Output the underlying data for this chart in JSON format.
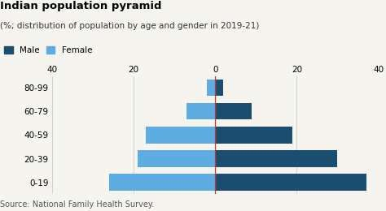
{
  "title": "Indian population pyramid",
  "subtitle": "(%; distribution of population by age and gender in 2019-21)",
  "source": "Source: National Family Health Survey.",
  "legend_male": "Male",
  "legend_female": "Female",
  "age_groups": [
    "0-19",
    "20-39",
    "40-59",
    "60-79",
    "80-99"
  ],
  "male_values": [
    37.0,
    30.0,
    19.0,
    9.0,
    2.0
  ],
  "female_values": [
    -26.0,
    -19.0,
    -17.0,
    -7.0,
    -2.0
  ],
  "male_color": "#1b4f72",
  "female_color": "#5dade2",
  "xlim": [
    -40,
    40
  ],
  "xticks": [
    -40,
    -20,
    0,
    20,
    40
  ],
  "xticklabels": [
    "40",
    "20",
    "0",
    "20",
    "40"
  ],
  "background_color": "#f5f4ef",
  "title_fontsize": 9.5,
  "subtitle_fontsize": 7.5,
  "label_fontsize": 7.5,
  "source_fontsize": 7,
  "bar_height": 0.7,
  "vline_color": "#c0392b",
  "grid_color": "#cccccc",
  "top_bar_color": "#c0392b"
}
